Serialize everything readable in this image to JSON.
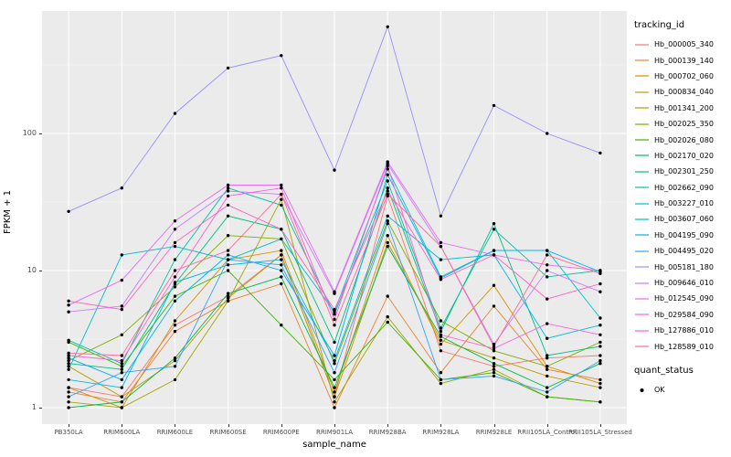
{
  "chart_data": {
    "type": "line",
    "title": "",
    "xlabel": "sample_name",
    "ylabel": "FPKM + 1",
    "y_scale": "log10",
    "y_ticks": [
      1,
      10,
      100
    ],
    "minor_y": [
      3.1623,
      31.623,
      316.23
    ],
    "ylim": [
      0.9,
      780
    ],
    "grid": true,
    "panel_background": "#EBEBEB",
    "grid_major_color": "#FFFFFF",
    "grid_minor_color": "#F5F5F5",
    "point_color": "#000000",
    "legend": {
      "title": "tracking_id",
      "position": "right"
    },
    "quant_status": {
      "title": "quant_status",
      "entries": [
        {
          "label": "OK",
          "color": "#000000"
        }
      ]
    },
    "categories": [
      "PB350LA",
      "RRIM600LA",
      "RRIM600LE",
      "RRIM600SE",
      "RRIM600PE",
      "RRIM901LA",
      "RRIM928BA",
      "RRIM928LA",
      "RRIM928LE",
      "RRII105LA_Control",
      "RRII105LA_Stressed"
    ],
    "series": [
      {
        "name": "Hb_000005_340",
        "color": "#F8766D",
        "values": [
          1.4,
          1.2,
          4.0,
          6.5,
          13,
          1.2,
          35,
          2.6,
          2.0,
          2.3,
          2.4
        ]
      },
      {
        "name": "Hb_000139_140",
        "color": "#EA8331",
        "values": [
          1.3,
          1.1,
          3.6,
          6.0,
          8.0,
          1.0,
          6.5,
          1.8,
          5.5,
          1.9,
          1.6
        ]
      },
      {
        "name": "Hb_000702_060",
        "color": "#D89000",
        "values": [
          1.4,
          1.0,
          4.3,
          12,
          14,
          1.3,
          18,
          2.9,
          7.8,
          2.0,
          1.5
        ]
      },
      {
        "name": "Hb_000834_040",
        "color": "#C09B00",
        "values": [
          2.0,
          1.2,
          2.2,
          6.3,
          13,
          1.2,
          16,
          3.1,
          2.3,
          1.7,
          1.4
        ]
      },
      {
        "name": "Hb_001341_200",
        "color": "#A3A500",
        "values": [
          1.1,
          1.0,
          1.6,
          6.0,
          33,
          1.1,
          4.6,
          1.5,
          1.9,
          1.2,
          1.1
        ]
      },
      {
        "name": "Hb_002025_350",
        "color": "#7CAE00",
        "values": [
          2.2,
          3.4,
          7.6,
          18,
          17,
          2.1,
          23,
          4.3,
          2.6,
          2.0,
          3.0
        ]
      },
      {
        "name": "Hb_002026_080",
        "color": "#39B600",
        "values": [
          3.0,
          2.0,
          6.5,
          10,
          4.0,
          1.6,
          4.2,
          1.6,
          1.8,
          1.2,
          1.1
        ]
      },
      {
        "name": "Hb_002170_020",
        "color": "#00BB4E",
        "values": [
          1.0,
          1.1,
          2.3,
          6.8,
          9.0,
          1.4,
          15,
          3.3,
          2.1,
          1.4,
          2.1
        ]
      },
      {
        "name": "Hb_002301_250",
        "color": "#00BF7D",
        "values": [
          2.1,
          1.9,
          8.0,
          25,
          20,
          3.0,
          40,
          3.6,
          22,
          2.4,
          2.8
        ]
      },
      {
        "name": "Hb_002662_090",
        "color": "#00C1A3",
        "values": [
          3.1,
          2.1,
          12,
          40,
          30,
          4.8,
          45,
          3.8,
          20,
          9.0,
          10
        ]
      },
      {
        "name": "Hb_003227_010",
        "color": "#00BFC4",
        "values": [
          1.9,
          13,
          15,
          12,
          17,
          5.0,
          55,
          9.0,
          14,
          14,
          4.5
        ]
      },
      {
        "name": "Hb_003607_060",
        "color": "#00BAE0",
        "values": [
          1.6,
          1.4,
          8.2,
          11,
          12,
          2.2,
          25,
          12,
          13,
          3.2,
          4.0
        ]
      },
      {
        "name": "Hb_004195_090",
        "color": "#00B0F6",
        "values": [
          2.3,
          1.6,
          6.0,
          13,
          10,
          2.4,
          50,
          8.8,
          14,
          14,
          9.8
        ]
      },
      {
        "name": "Hb_004495_020",
        "color": "#35A2FF",
        "values": [
          1.2,
          1.8,
          2.0,
          12,
          11,
          1.8,
          22,
          1.6,
          1.7,
          1.3,
          2.2
        ]
      },
      {
        "name": "Hb_005181_180",
        "color": "#9590FF",
        "values": [
          27,
          40,
          140,
          300,
          370,
          54,
          600,
          25,
          160,
          100,
          72
        ]
      },
      {
        "name": "Hb_009646_010",
        "color": "#C77CFF",
        "values": [
          5.0,
          5.5,
          20,
          38,
          36,
          6.8,
          60,
          15,
          2.9,
          10,
          7.0
        ]
      },
      {
        "name": "Hb_012545_090",
        "color": "#E76BF3",
        "values": [
          5.6,
          8.5,
          23,
          42,
          42,
          7.0,
          62,
          16,
          13,
          11,
          10
        ]
      },
      {
        "name": "Hb_029584_090",
        "color": "#FA62DB",
        "values": [
          2.4,
          2.2,
          9.0,
          35,
          40,
          4.4,
          58,
          3.4,
          2.7,
          4.1,
          3.4
        ]
      },
      {
        "name": "Hb_127886_010",
        "color": "#FF61C3",
        "values": [
          6.0,
          5.2,
          16,
          30,
          20,
          5.2,
          38,
          8.6,
          13,
          6.2,
          8.0
        ]
      },
      {
        "name": "Hb_128589_010",
        "color": "#FF6A98",
        "values": [
          2.5,
          2.4,
          10,
          14,
          36,
          4.0,
          36,
          15,
          2.8,
          13,
          9.5
        ]
      }
    ]
  }
}
